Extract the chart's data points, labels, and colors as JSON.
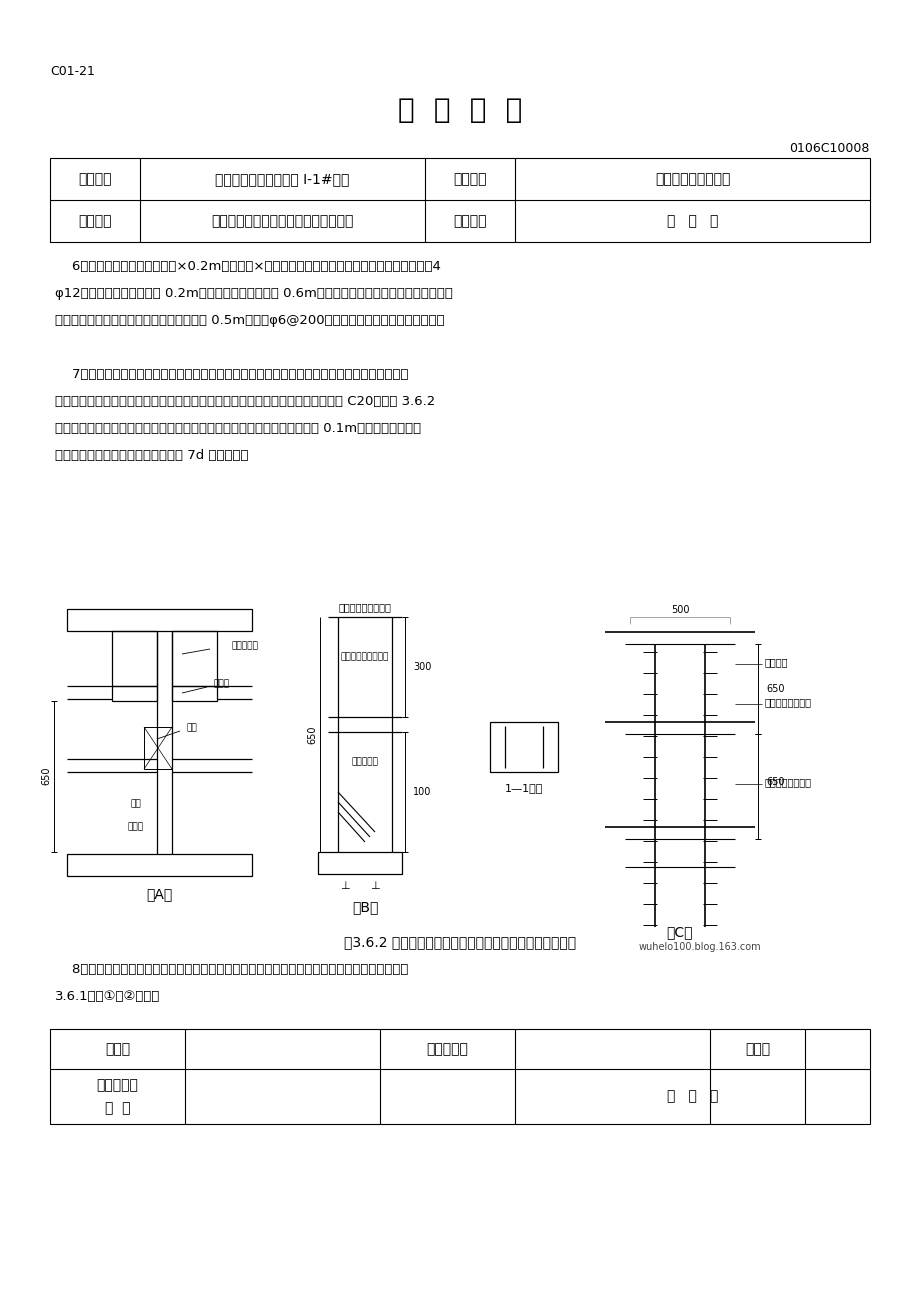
{
  "page_id": "C01-21",
  "title": "技  术  交  底",
  "doc_number": "0106C10008",
  "table1_row1": [
    "工程名称",
    "伊犁国际农机交易中心 I-1#市场",
    "交底部位",
    "一至四层填充墙砌体"
  ],
  "table1_row2": [
    "施工单位",
    "新源县固强建筑安装工程有限责任公司",
    "交底时间",
    "年   月   日"
  ],
  "body_lines": [
    "    6、抗裂柱截面不宜大于墙厚×0.2m、或墙厚×窗间墙长度。拉结筋设置同结构柱，纵筋不小于4",
    "φ12，纵筋中心间距不大于 0.2m，纵筋搭接长度不小于 0.6m，上下楼层交接处纵筋应连续贯通，端",
    "部进入基础梁或屋面梁的锚固长度各不小于 0.5m，箍筋φ6@200，纵筋搭接范围内箍筋间距减半。",
    "",
    "    7、抗裂柱的混凝土应分段浇筑。上段柱的混凝土强度等级同结构柱并与结构柱一齐浇筑，下段",
    "柱的混凝土应待上层抗裂柱的上段柱浇筑完毕后再浇筑，混凝土强度等级不宜小于 C20，如图 3.6.2",
    "所示。下段柱的进料口宜留在有砌体一侧，混凝土浇筑高度比上段柱柱底高 0.1m，砌块锯成相应形",
    "状与其砌结，露出砌体部分应待浇筑 7d 后再凿除。"
  ],
  "fig_caption": "图3.6.2 抗裂柱模板安装、钢筋安装及分段浇筑混凝土示意",
  "bottom_lines": [
    "    8、支承在悬臂板上的抗裂柱，与梁同标高部位应与梁同时安装模板、钢筋和浇筑混凝土，如图",
    "3.6.1节点①、②所示。"
  ],
  "table2_row1": [
    "交底人",
    "",
    "质量检查员",
    "",
    "安全员",
    ""
  ],
  "table2_row2_col1": "接受交底人\n签  名",
  "table2_row2_date": "年   月   日",
  "watermark": "wuhelo100.blog.163.com",
  "bg": "#ffffff",
  "black": "#000000"
}
